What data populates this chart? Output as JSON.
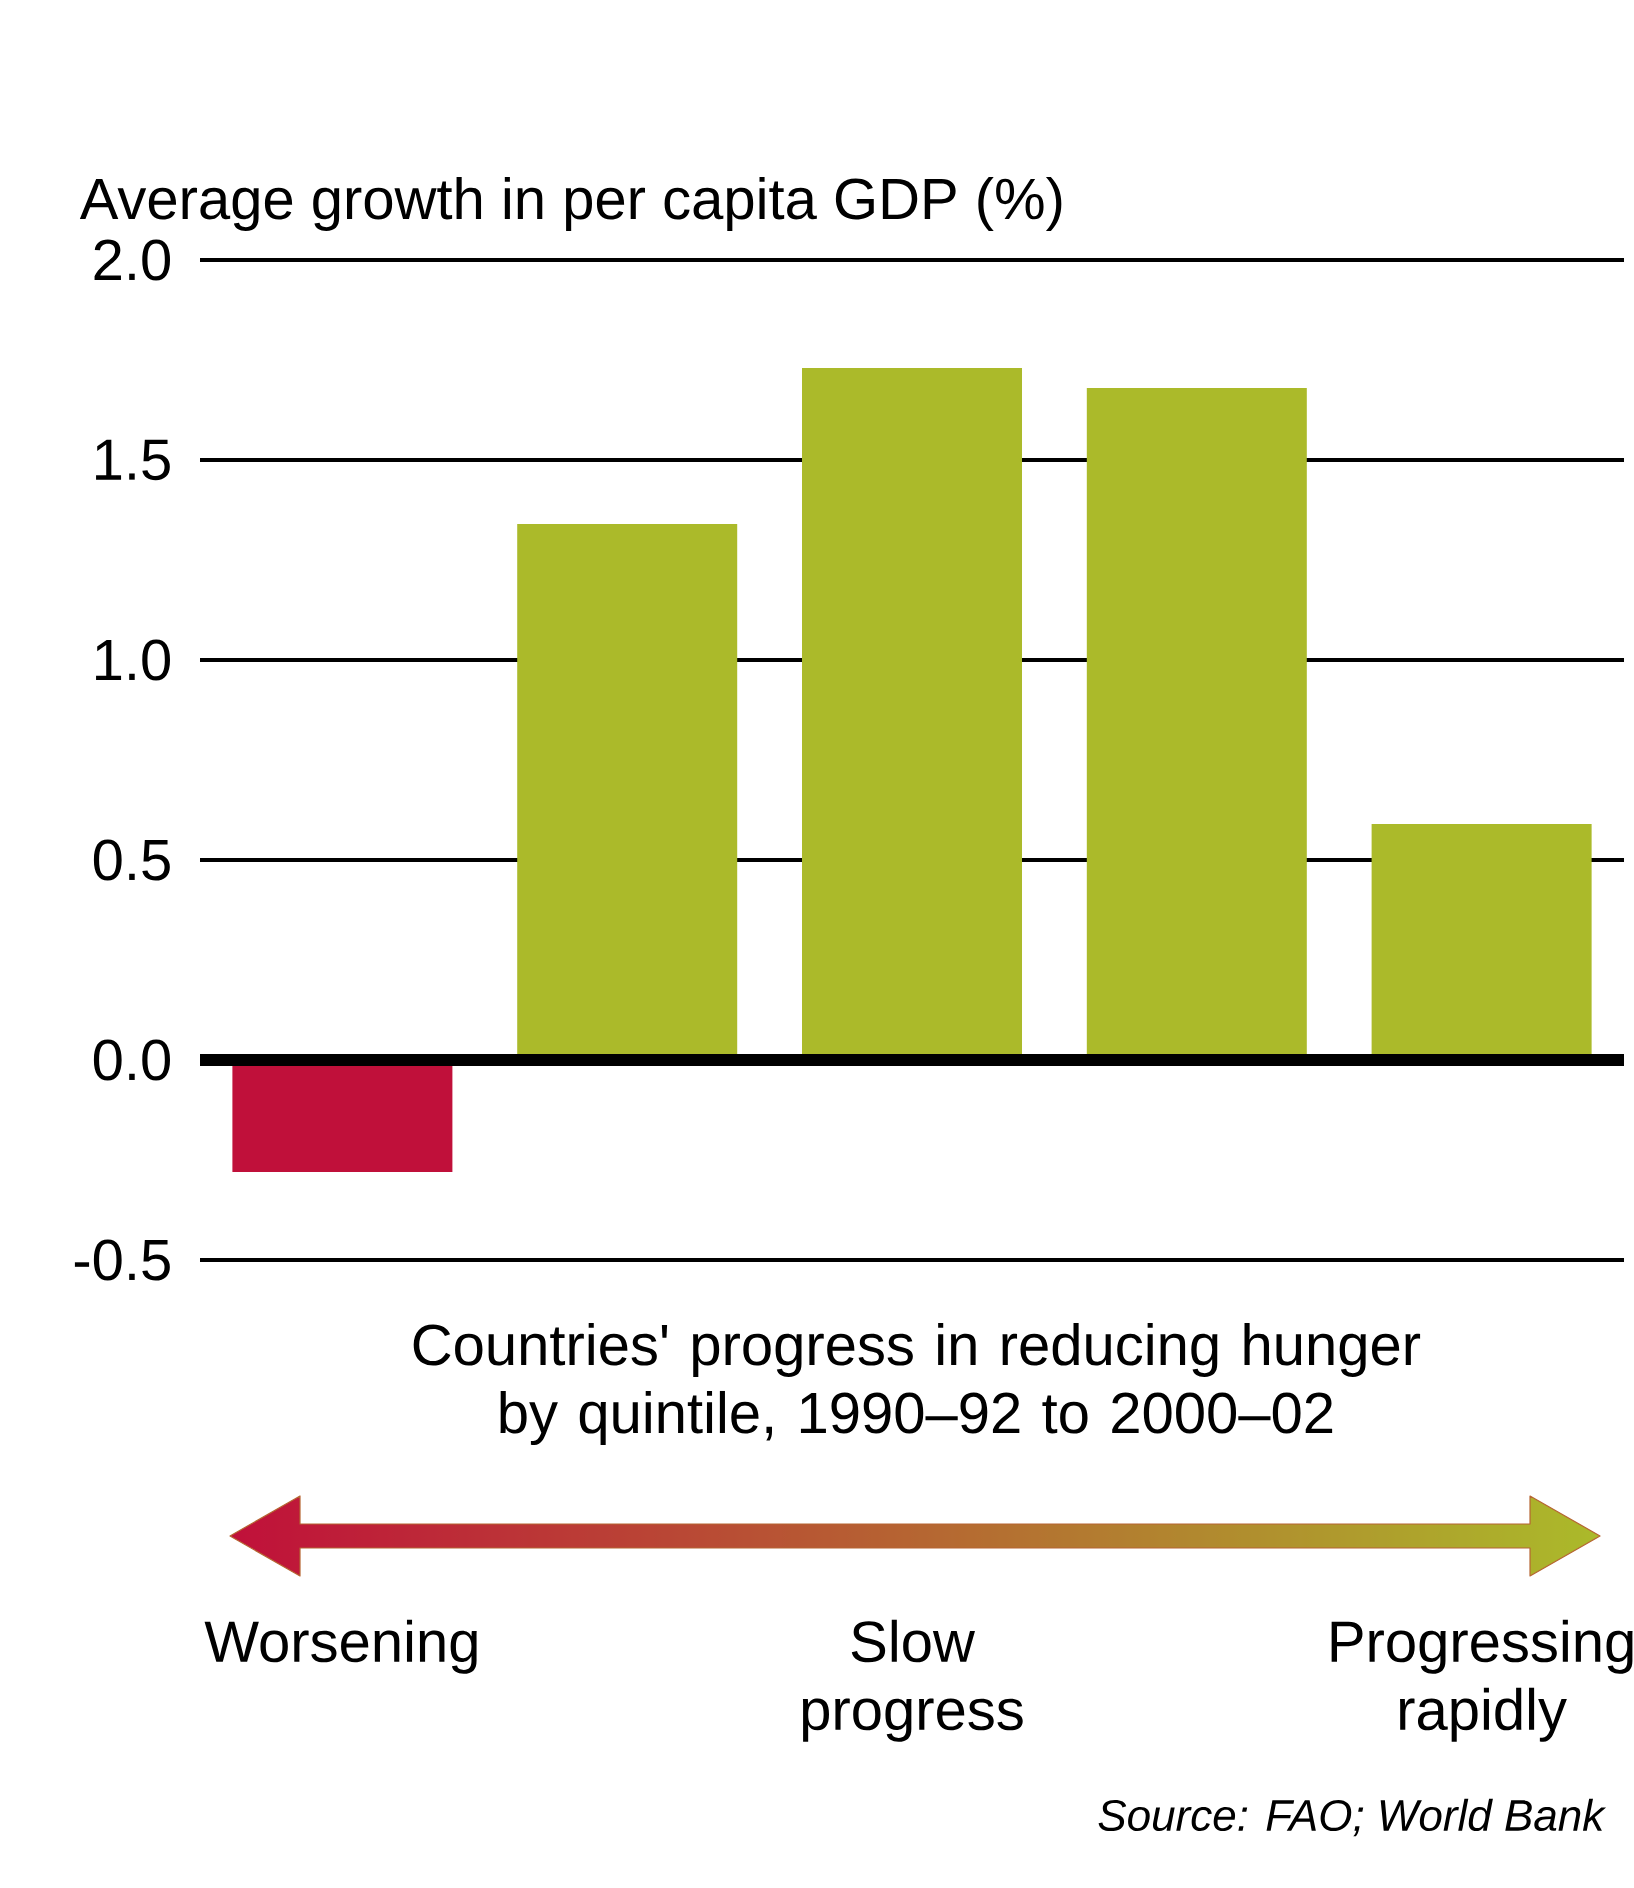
{
  "chart_data": {
    "type": "bar",
    "ylabel": "Average growth in per capita GDP (%)",
    "xlabel": "Countries' progress in reducing hunger by quintile, 1990–92 to 2000–02",
    "categories": [
      "Worsening",
      null,
      "Slow progress",
      null,
      "Progressing rapidly"
    ],
    "values": [
      -0.28,
      1.34,
      1.73,
      1.68,
      0.59
    ],
    "colors": [
      "#c0103a",
      "#abba2a",
      "#abba2a",
      "#abba2a",
      "#abba2a"
    ],
    "ylim": [
      -0.5,
      2.0
    ],
    "yticks": [
      {
        "value": -0.5,
        "label": "-0.5"
      },
      {
        "value": 0,
        "label": "0.0"
      },
      {
        "value": 0.5,
        "label": "0.5"
      },
      {
        "value": 1.0,
        "label": "1.0"
      },
      {
        "value": 1.5,
        "label": "1.5"
      },
      {
        "value": 2.0,
        "label": "2.0"
      }
    ],
    "grid": "y",
    "annotations": [
      "Source: FAO; World Bank"
    ]
  }
}
